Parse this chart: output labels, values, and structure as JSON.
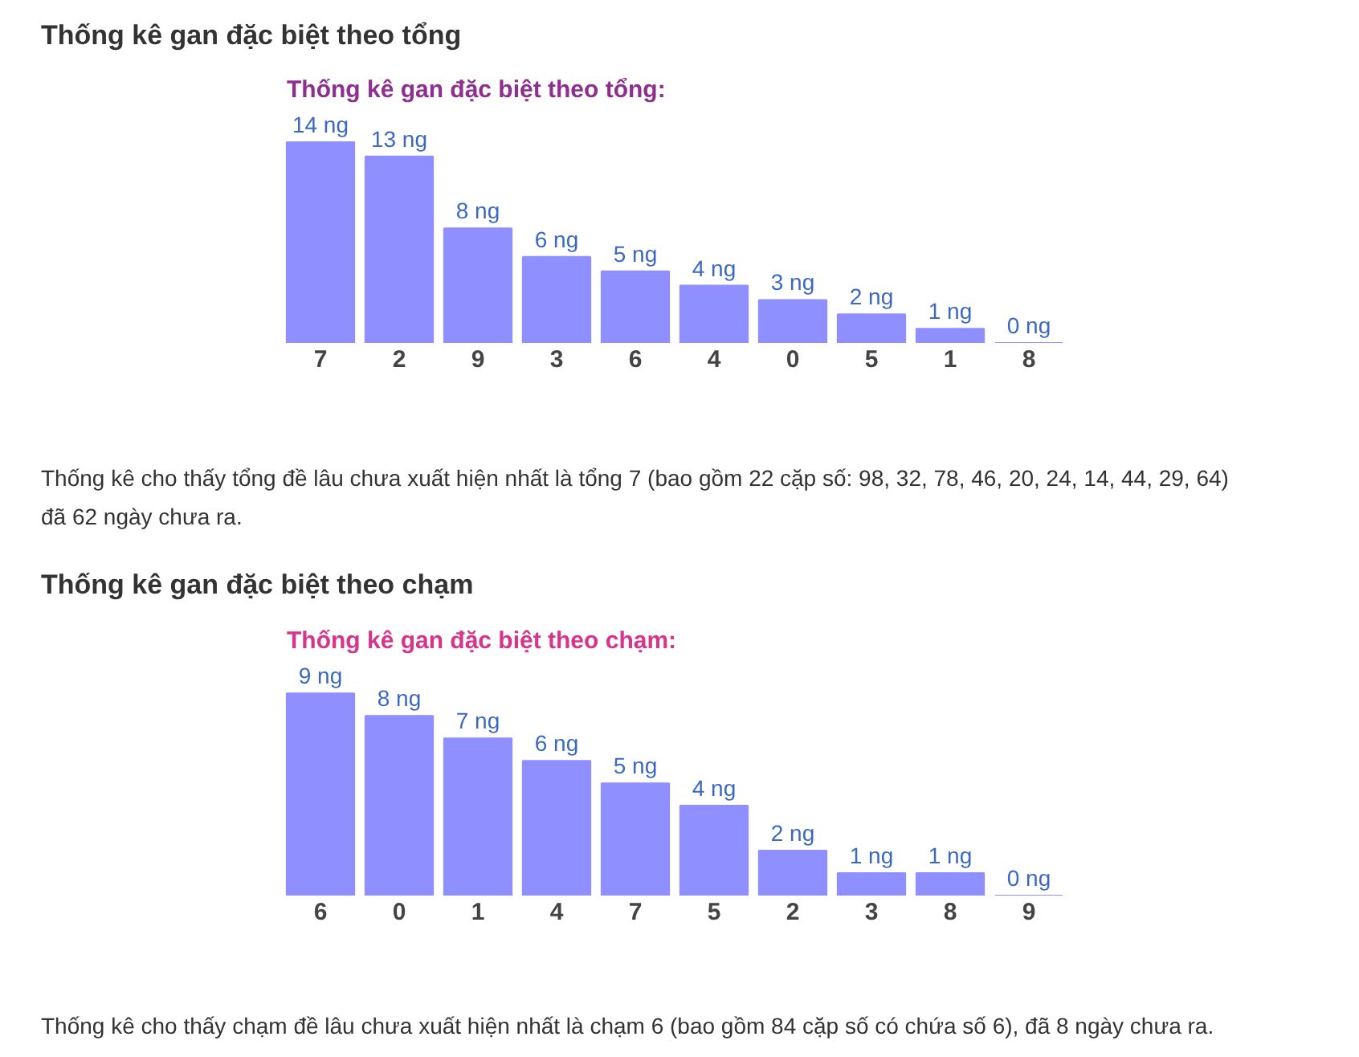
{
  "chart_data": [
    {
      "type": "bar",
      "title": "Thống kê gan đặc biệt theo tổng",
      "subtitle": "Thống kê gan đặc biệt theo tổng:",
      "categories": [
        "7",
        "2",
        "9",
        "3",
        "6",
        "4",
        "0",
        "5",
        "1",
        "8"
      ],
      "values": [
        14,
        13,
        8,
        6,
        5,
        4,
        3,
        2,
        1,
        0
      ],
      "value_labels": [
        "14 ng",
        "13 ng",
        "8 ng",
        "6 ng",
        "5 ng",
        "4 ng",
        "3 ng",
        "2 ng",
        "1 ng",
        "0 ng"
      ],
      "color": "#8f8fff",
      "annotations": [
        "Thống kê cho thấy tổng đề lâu chưa xuất hiện nhất là tổng 7 (bao gồm 22 cặp số: 98, 32, 78, 46, 20, 24, 14, 44, 29, 64) đã 62 ngày chưa ra."
      ]
    },
    {
      "type": "bar",
      "title": "Thống kê gan đặc biệt theo chạm",
      "subtitle": "Thống kê gan đặc biệt theo chạm:",
      "categories": [
        "6",
        "0",
        "1",
        "4",
        "7",
        "5",
        "2",
        "3",
        "8",
        "9"
      ],
      "values": [
        9,
        8,
        7,
        6,
        5,
        4,
        2,
        1,
        1,
        0
      ],
      "value_labels": [
        "9 ng",
        "8 ng",
        "7 ng",
        "6 ng",
        "5 ng",
        "4 ng",
        "2 ng",
        "1 ng",
        "1 ng",
        "0 ng"
      ],
      "color": "#8f8fff",
      "annotations": [
        "Thống kê cho thấy chạm đề lâu chưa xuất hiện nhất là chạm 6 (bao gồm 84 cặp số có chứa số 6), đã 8 ngày chưa ra."
      ]
    }
  ]
}
